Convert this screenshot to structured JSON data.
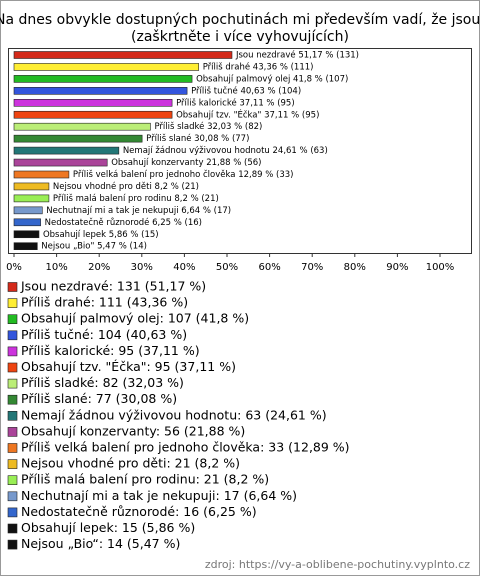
{
  "chart_data": {
    "type": "hbar",
    "title": "Na dnes obvykle dostupných pochutinách mi především vadí, že jsou:",
    "subtitle": "(zaškrtněte i více vyhovujících)",
    "categories": [
      "Jsou nezdravé",
      "Příliš drahé",
      "Obsahují palmový olej",
      "Příliš tučné",
      "Příliš kalorické",
      "Obsahují tzv. \"Éčka\"",
      "Příliš sladké",
      "Příliš slané",
      "Nemají žádnou výživovou hodnotu",
      "Obsahují konzervanty",
      "Příliš velká balení pro jednoho člověka",
      "Nejsou vhodné pro děti",
      "Příliš malá balení pro rodinu",
      "Nechutnají mi a tak je nekupuji",
      "Nedostatečně různorodé",
      "Obsahují lepek",
      "Nejsou „Bio“"
    ],
    "values": [
      51.17,
      43.36,
      41.8,
      40.63,
      37.11,
      37.11,
      32.03,
      30.08,
      24.61,
      21.88,
      12.89,
      8.2,
      8.2,
      6.64,
      6.25,
      5.86,
      5.47
    ],
    "value_labels": [
      "Jsou nezdravé 51,17 % (131)",
      "Příliš drahé 43,36 % (111)",
      "Obsahují palmový olej 41,8 % (107)",
      "Příliš tučné 40,63 % (104)",
      "Příliš kalorické 37,11 % (95)",
      "Obsahují tzv. \"Éčka\" 37,11 % (95)",
      "Příliš sladké 32,03 % (82)",
      "Příliš slané 30,08 % (77)",
      "Nemají žádnou výživovou hodnotu 24,61 % (63)",
      "Obsahují konzervanty 21,88 % (56)",
      "Příliš velká balení pro jednoho člověka 12,89 % (33)",
      "Nejsou vhodné pro děti 8,2 % (21)",
      "Příliš malá balení pro rodinu 8,2 % (21)",
      "Nechutnají mi a tak je nekupuji 6,64 % (17)",
      "Nedostatečně různorodé 6,25 % (16)",
      "Obsahují lepek 5,86 % (15)",
      "Nejsou „Bio\" 5,47 % (14)"
    ],
    "legend_labels": [
      "Jsou nezdravé: 131 (51,17 %)",
      "Příliš drahé: 111 (43,36 %)",
      "Obsahují palmový olej: 107 (41,8 %)",
      "Příliš tučné: 104 (40,63 %)",
      "Příliš kalorické: 95 (37,11 %)",
      "Obsahují tzv. \"Éčka\": 95 (37,11 %)",
      "Příliš sladké: 82 (32,03 %)",
      "Příliš slané: 77 (30,08 %)",
      "Nemají žádnou výživovou hodnotu: 63 (24,61 %)",
      "Obsahují konzervanty: 56 (21,88 %)",
      "Příliš velká balení pro jednoho člověka: 33 (12,89 %)",
      "Nejsou vhodné pro děti: 21 (8,2 %)",
      "Příliš malá balení pro rodinu: 21 (8,2 %)",
      "Nechutnají mi a tak je nekupuji: 17 (6,64 %)",
      "Nedostatečně různorodé: 16 (6,25 %)",
      "Obsahují lepek: 15 (5,86 %)",
      "Nejsou „Bio“: 14 (5,47 %)"
    ],
    "colors": [
      "#d42a1a",
      "#ffee33",
      "#22bb22",
      "#3355dd",
      "#cc33dd",
      "#ee4411",
      "#bbee77",
      "#338833",
      "#227777",
      "#aa4499",
      "#ee7722",
      "#eebb22",
      "#99ee55",
      "#7799cc",
      "#3366cc",
      "#111111",
      "#111111"
    ],
    "xlim": [
      0,
      100
    ],
    "xticks": [
      {
        "value": 0,
        "label": "0%"
      },
      {
        "value": 10,
        "label": "10%"
      },
      {
        "value": 20,
        "label": "20%"
      },
      {
        "value": 30,
        "label": "30%"
      },
      {
        "value": 40,
        "label": "40%"
      },
      {
        "value": 50,
        "label": "50%"
      },
      {
        "value": 60,
        "label": "60%"
      },
      {
        "value": 70,
        "label": "70%"
      },
      {
        "value": 80,
        "label": "80%"
      },
      {
        "value": 90,
        "label": "90%"
      },
      {
        "value": 100,
        "label": "100%"
      }
    ],
    "grid": false,
    "source": "zdroj: https://vy-a-oblibene-pochutiny.vyplnto.cz"
  }
}
